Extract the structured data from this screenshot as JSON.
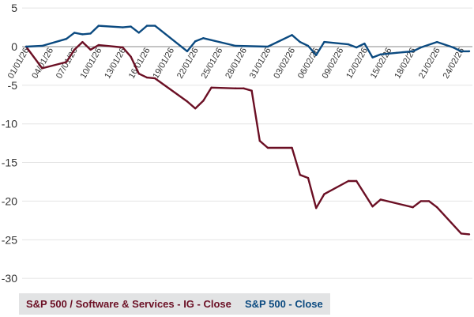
{
  "chart_data": {
    "type": "line",
    "title": "",
    "xlabel": "",
    "ylabel": "",
    "ylim": [
      -30,
      5
    ],
    "yticks": [
      "5",
      "0",
      "-5",
      "-10",
      "-15",
      "-20",
      "-25",
      "-30"
    ],
    "xticks": [
      "01/01/26",
      "04/01/26",
      "07/01/26",
      "10/01/26",
      "13/01/26",
      "16/01/26",
      "19/01/26",
      "22/01/26",
      "25/01/26",
      "28/01/26",
      "31/01/26",
      "03/02/26",
      "06/02/26",
      "09/02/26",
      "12/02/26",
      "15/02/26",
      "18/02/26",
      "21/02/26",
      "24/02/26"
    ],
    "grid": true,
    "legend_position": "bottom-left",
    "series": [
      {
        "name": "S&P 500 / Software & Services - IG - Close",
        "color": "#6b0f24",
        "x": [
          "01/01/26",
          "03/01/26",
          "06/01/26",
          "07/01/26",
          "08/01/26",
          "09/01/26",
          "10/01/26",
          "13/01/26",
          "14/01/26",
          "15/01/26",
          "16/01/26",
          "17/01/26",
          "21/01/26",
          "22/01/26",
          "23/01/26",
          "24/01/26",
          "27/01/26",
          "28/01/26",
          "29/01/26",
          "30/01/26",
          "31/01/26",
          "03/02/26",
          "04/02/26",
          "05/02/26",
          "06/02/26",
          "07/02/26",
          "10/02/26",
          "11/02/26",
          "13/02/26",
          "14/02/26",
          "18/02/26",
          "19/02/26",
          "20/02/26",
          "21/02/26",
          "24/02/26",
          "25/02/26"
        ],
        "values": [
          0,
          -2.8,
          -2.0,
          -0.4,
          0.6,
          -0.4,
          0.2,
          -0.1,
          -1.3,
          -3.5,
          -4.0,
          -4.1,
          -7.1,
          -8.0,
          -7.0,
          -5.3,
          -5.4,
          -5.4,
          -5.7,
          -12.2,
          -13.1,
          -13.1,
          -16.6,
          -17.0,
          -20.9,
          -19.1,
          -17.4,
          -17.4,
          -20.7,
          -19.8,
          -20.8,
          -20.0,
          -20.0,
          -20.8,
          -24.2,
          -24.3
        ]
      },
      {
        "name": "S&P 500 - Close",
        "color": "#0b4a80",
        "x": [
          "01/01/26",
          "03/01/26",
          "06/01/26",
          "07/01/26",
          "08/01/26",
          "09/01/26",
          "10/01/26",
          "13/01/26",
          "14/01/26",
          "15/01/26",
          "16/01/26",
          "17/01/26",
          "21/01/26",
          "22/01/26",
          "23/01/26",
          "27/01/26",
          "31/01/26",
          "03/02/26",
          "04/02/26",
          "05/02/26",
          "06/02/26",
          "07/02/26",
          "10/02/26",
          "11/02/26",
          "12/02/26",
          "13/02/26",
          "14/02/26",
          "16/02/26",
          "18/02/26",
          "19/02/26",
          "21/02/26",
          "23/02/26",
          "24/02/26",
          "25/02/26"
        ],
        "values": [
          0,
          0.1,
          1.0,
          1.8,
          1.6,
          1.7,
          2.7,
          2.5,
          2.6,
          1.8,
          2.7,
          2.7,
          -0.6,
          0.7,
          1.1,
          0.1,
          0,
          1.5,
          0.6,
          0.1,
          -1.1,
          0.6,
          0.3,
          -0.1,
          0.4,
          -1.4,
          -1.0,
          -0.8,
          -0.6,
          -0.1,
          0.6,
          -0.1,
          -0.6,
          -0.6
        ]
      }
    ]
  }
}
